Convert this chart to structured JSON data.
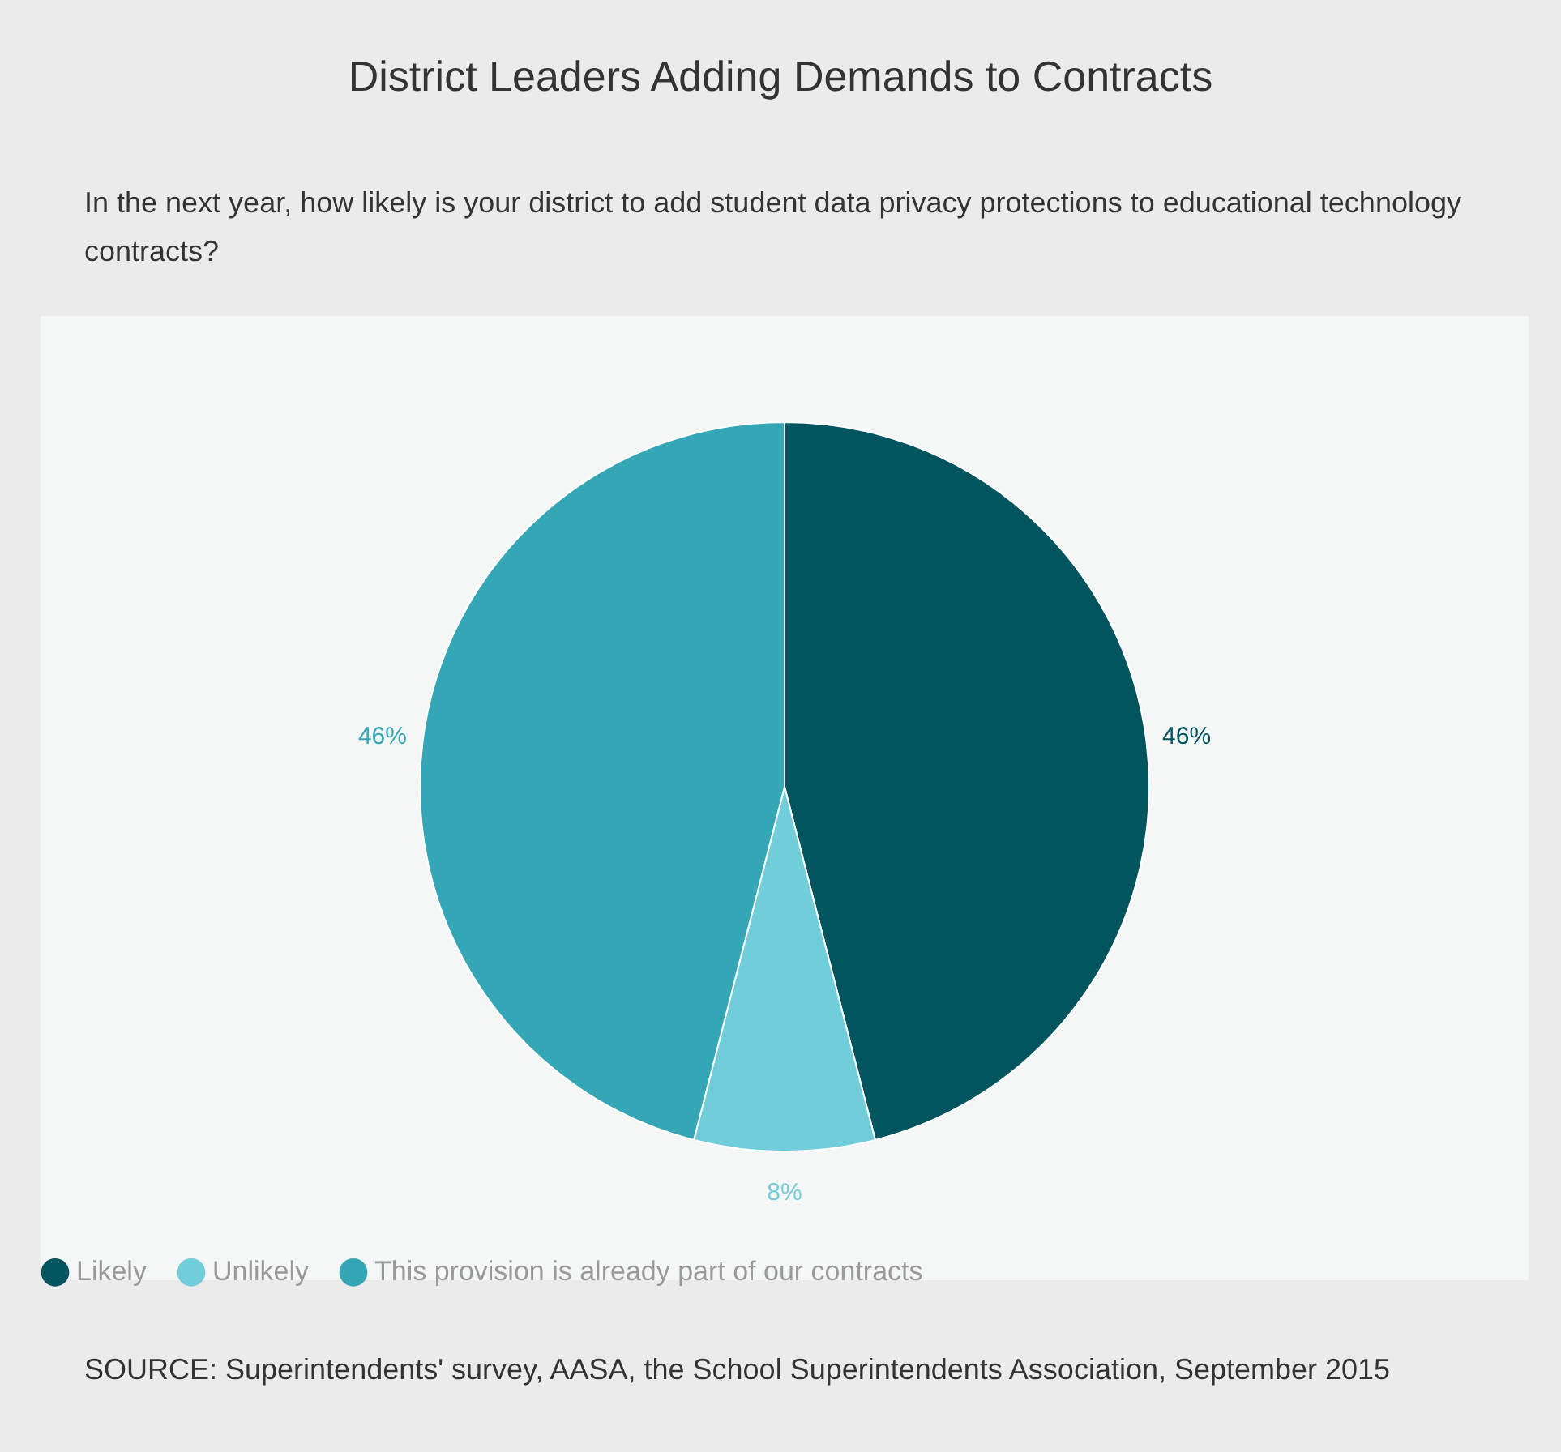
{
  "chart_data": {
    "type": "pie",
    "title": "District Leaders Adding Demands to Contracts",
    "subtitle": "In the next year, how likely is your district to add student data privacy protections to educational technology contracts?",
    "categories": [
      "Likely",
      "Unlikely",
      "This provision is already part of our contracts"
    ],
    "values": [
      46,
      8,
      46
    ],
    "colors": [
      "#02555f",
      "#72cddb",
      "#35a6b5"
    ],
    "value_labels": [
      "46%",
      "8%",
      "46%"
    ],
    "legend": "bottom",
    "annotations": [
      "SOURCE: Superintendents' survey, AASA, the School Superintendents Association, September 2015"
    ]
  }
}
